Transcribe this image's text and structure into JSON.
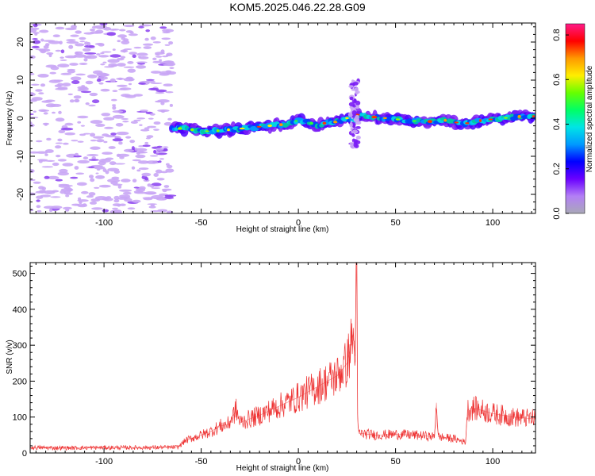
{
  "title": "KOM5.2025.046.22.28.G09",
  "colors": {
    "snr_line": "#ee3333",
    "noise_cloud": "#c9a6f5",
    "noise_dark": "#8a3ff0",
    "colorbar_stops": [
      "#a9a9b8",
      "#b37ff5",
      "#6a00ff",
      "#0000ff",
      "#0099ff",
      "#00e5e5",
      "#00ff66",
      "#66ff00",
      "#ffee00",
      "#ff9900",
      "#ff0000",
      "#ff1a88"
    ]
  },
  "chart_data": [
    {
      "type": "heatmap",
      "title": "",
      "xlabel": "Height of straight line (km)",
      "ylabel": "Frequency (Hz)",
      "xlim": [
        -138,
        122
      ],
      "ylim": [
        -25,
        25
      ],
      "xticks": [
        -100,
        -50,
        0,
        50,
        100
      ],
      "yticks": [
        -20,
        -10,
        0,
        10,
        20
      ],
      "grid": false,
      "colorbar": {
        "label": "Normalized spectral amplitude",
        "range": [
          0.0,
          0.85
        ],
        "ticks": [
          "0.0",
          "0.2",
          "0.4",
          "0.6",
          "0.8"
        ]
      },
      "noise_region": {
        "x": [
          -138,
          -65
        ],
        "y": [
          -25,
          25
        ]
      },
      "signal_track": {
        "x": [
          -65,
          -55,
          -45,
          -35,
          -25,
          -15,
          -5,
          0,
          5,
          10,
          15,
          20,
          25,
          28,
          30,
          35,
          45,
          55,
          65,
          75,
          85,
          95,
          105,
          115,
          122
        ],
        "freq": [
          -2.5,
          -3.0,
          -3.5,
          -3.0,
          -2.5,
          -2.0,
          -1.5,
          -0.5,
          -1.0,
          -2.0,
          -1.0,
          -1.0,
          0.0,
          -1.0,
          1.0,
          0.5,
          0.0,
          -0.5,
          -1.0,
          -0.5,
          -1.5,
          -0.5,
          0.0,
          0.5,
          0.5
        ]
      },
      "disturbance": {
        "x": 30,
        "freq_range": [
          -8,
          10
        ]
      }
    },
    {
      "type": "line",
      "title": "",
      "xlabel": "Height of straight line (km)",
      "ylabel": "SNR (v/v)",
      "xlim": [
        -138,
        122
      ],
      "ylim": [
        0,
        530
      ],
      "xticks": [
        -100,
        -50,
        0,
        50,
        100
      ],
      "yticks": [
        0,
        100,
        200,
        300,
        400,
        500
      ],
      "grid": false,
      "series": [
        {
          "x": [
            -138,
            -120,
            -100,
            -80,
            -62,
            -58,
            -50,
            -45,
            -40,
            -36,
            -32,
            -30,
            -25,
            -20,
            -10,
            0,
            10,
            15,
            20,
            25,
            27,
            28,
            29,
            30,
            30.5,
            31,
            40,
            50,
            60,
            70,
            71,
            72,
            80,
            86,
            87,
            90,
            100,
            110,
            122
          ],
          "values": [
            15,
            14,
            15,
            15,
            16,
            35,
            50,
            60,
            75,
            80,
            120,
            85,
            95,
            105,
            130,
            155,
            185,
            200,
            215,
            250,
            300,
            330,
            270,
            530,
            100,
            55,
            50,
            52,
            50,
            45,
            140,
            45,
            40,
            30,
            120,
            125,
            110,
            100,
            95
          ]
        }
      ]
    }
  ]
}
